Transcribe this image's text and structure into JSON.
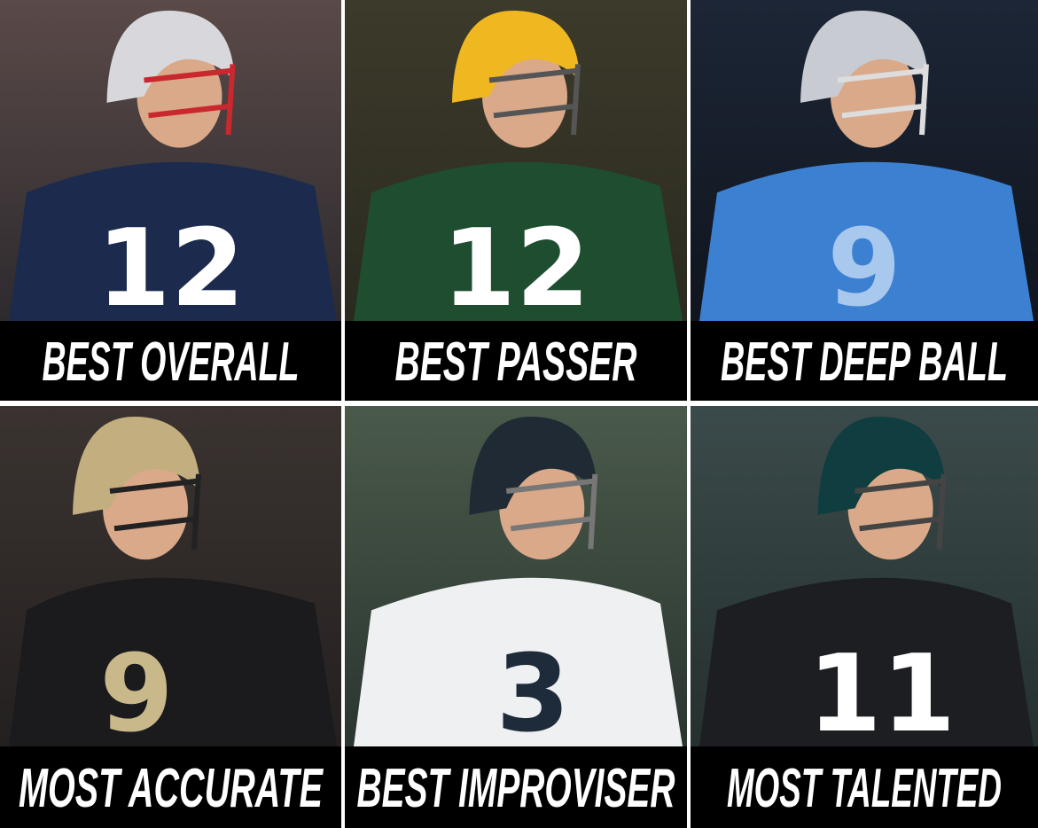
{
  "panels": [
    {
      "caption": "BEST OVERALL",
      "jersey_number": "12"
    },
    {
      "caption": "BEST PASSER",
      "jersey_number": "12"
    },
    {
      "caption": "BEST DEEP BALL",
      "jersey_number": "9"
    },
    {
      "caption": "MOST ACCURATE",
      "jersey_number": "9"
    },
    {
      "caption": "BEST IMPROVISER",
      "jersey_number": "3"
    },
    {
      "caption": "MOST TALENTED",
      "jersey_number": "11"
    }
  ]
}
